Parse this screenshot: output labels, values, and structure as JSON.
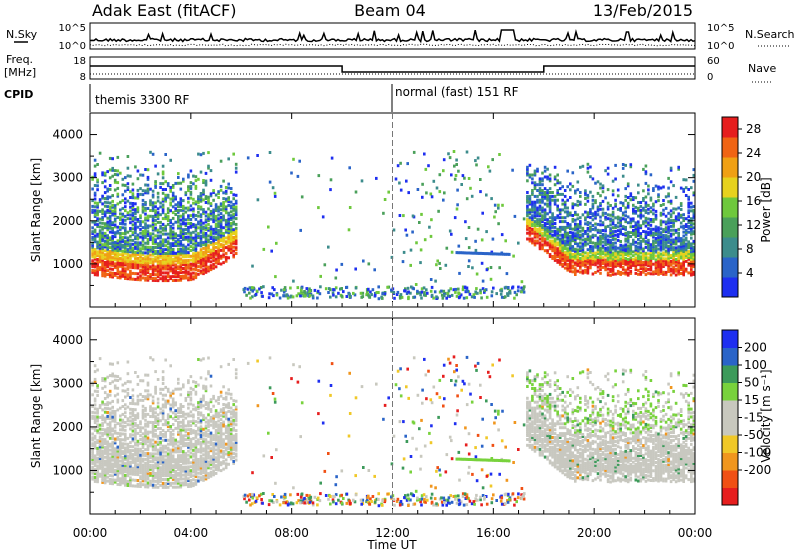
{
  "header": {
    "station": "Adak East (fitACF)",
    "beam": "Beam 04",
    "date": "13/Feb/2015"
  },
  "colors": {
    "power_scale": [
      "#1e2ff0",
      "#2a64c8",
      "#3c8c8c",
      "#4aa05a",
      "#6ec83c",
      "#e6d21e",
      "#f0a014",
      "#f06414",
      "#e61e1e"
    ],
    "velocity_scale": [
      "#e61e1e",
      "#f05014",
      "#f0961e",
      "#f0c828",
      "#c8c8be",
      "#c8c8be",
      "#78d23c",
      "#3c9a5a",
      "#2a64c8",
      "#1e2ff0"
    ],
    "ground_scatter": "#c8c8c0"
  },
  "top_panels": {
    "nsky_label": "N.Sky",
    "nsky_ticks": [
      "10^5",
      "10^0"
    ],
    "nsearch_label": "N.Search",
    "nsearch_ticks": [
      "10^5",
      "10^0"
    ],
    "freq_label_1": "Freq.",
    "freq_label_2": "[MHz]",
    "freq_ticks": [
      "18",
      "8"
    ],
    "nave_label": "Nave",
    "nave_ticks": [
      "60",
      "0"
    ],
    "cpid_label": "CPID",
    "cpid_modes": [
      {
        "label": "themis 3300 RF",
        "start_hour": 0
      },
      {
        "label": "normal (fast) 151 RF",
        "start_hour": 12
      }
    ]
  },
  "chart_data": [
    {
      "type": "heatmap",
      "name": "power",
      "ylabel": "Slant Range [km]",
      "yticks": [
        "1000",
        "2000",
        "3000",
        "4000"
      ],
      "ylim": [
        0,
        4500
      ],
      "colorbar_label": "Power [dB]",
      "colorbar_ticks": [
        "4",
        "8",
        "12",
        "16",
        "20",
        "24",
        "28"
      ],
      "colorbar_range": [
        0,
        30
      ]
    },
    {
      "type": "heatmap",
      "name": "velocity",
      "ylabel": "Slant Range [km]",
      "yticks": [
        "1000",
        "2000",
        "3000",
        "4000"
      ],
      "ylim": [
        0,
        4500
      ],
      "colorbar_label": "Velocity [m s⁻¹]",
      "colorbar_ticks": [
        "200",
        "100",
        "50",
        "15",
        "-15",
        "-50",
        "-100",
        "-200"
      ]
    }
  ],
  "time_axis": {
    "label": "Time UT",
    "ticks": [
      "00:00",
      "04:00",
      "08:00",
      "12:00",
      "16:00",
      "20:00",
      "00:00"
    ],
    "range_hours": [
      0,
      24
    ]
  }
}
